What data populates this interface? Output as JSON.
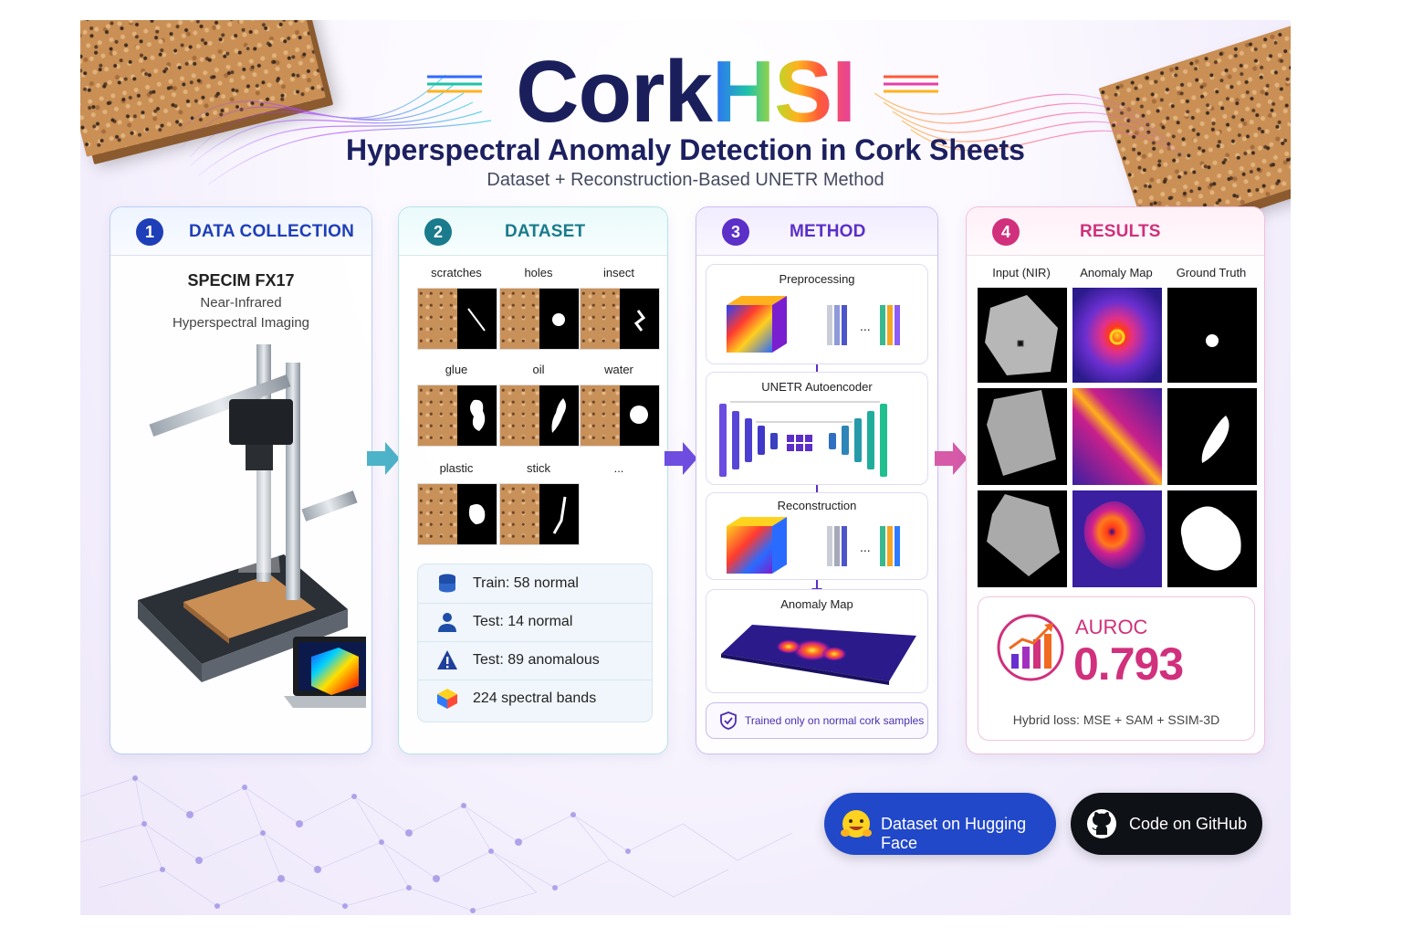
{
  "header": {
    "logo_cork": "Cork",
    "logo_hsi": "HSI",
    "subtitle": "Hyperspectral Anomaly Detection in Cork Sheets",
    "tagline": "Dataset + Reconstruction-Based UNETR Method"
  },
  "panels": {
    "data_collection": {
      "number": "1",
      "title": "DATA COLLECTION",
      "camera": "SPECIM FX17",
      "camera_sub1": "Near-Infrared",
      "camera_sub2": "Hyperspectral Imaging"
    },
    "dataset": {
      "number": "2",
      "title": "DATASET",
      "defects": [
        "scratches",
        "holes",
        "insect",
        "glue",
        "oil",
        "water",
        "plastic",
        "stick",
        "..."
      ],
      "stats": [
        {
          "icon": "database-icon",
          "text": "Train:  58 normal"
        },
        {
          "icon": "user-icon",
          "text": "Test:  14 normal"
        },
        {
          "icon": "warning-icon",
          "text": "Test:  89 anomalous"
        },
        {
          "icon": "cube-icon",
          "text": "224 spectral bands"
        }
      ]
    },
    "method": {
      "number": "3",
      "title": "METHOD",
      "steps": [
        "Preprocessing",
        "UNETR Autoencoder",
        "Reconstruction",
        "Anomaly Map"
      ],
      "note": "Trained only on normal cork samples"
    },
    "results": {
      "number": "4",
      "title": "RESULTS",
      "columns": [
        "Input (NIR)",
        "Anomaly Map",
        "Ground Truth"
      ],
      "metric_label": "AUROC",
      "metric_value": "0.793",
      "loss": "Hybrid loss: MSE + SAM + SSIM-3D"
    }
  },
  "buttons": {
    "huggingface": "Dataset on Hugging Face",
    "github": "Code on GitHub"
  },
  "colors": {
    "navy": "#1a1f5c",
    "blue": "#1f3fb8",
    "teal": "#197b8c",
    "purple": "#5b2fc8",
    "pink": "#d0307c"
  }
}
